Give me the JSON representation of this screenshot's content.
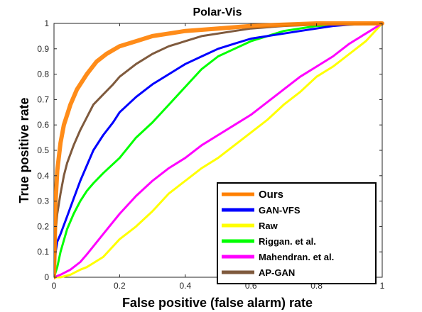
{
  "chart_data": {
    "type": "line",
    "title": "Polar-Vis",
    "xlabel": "False positive (false alarm) rate",
    "ylabel": "True positive  rate",
    "xlim": [
      0,
      1
    ],
    "ylim": [
      0,
      1
    ],
    "xticks": [
      "0",
      "0.2",
      "0.4",
      "0.6",
      "0.8",
      "1"
    ],
    "yticks": [
      "0",
      "0.1",
      "0.2",
      "0.3",
      "0.4",
      "0.5",
      "0.6",
      "0.7",
      "0.8",
      "0.9",
      "1"
    ],
    "grid": false,
    "legend_position": "bottom-right",
    "series": [
      {
        "name": "Ours",
        "color": "#ff8000",
        "width": "thick",
        "points": [
          [
            0,
            0
          ],
          [
            0.005,
            0.3
          ],
          [
            0.01,
            0.42
          ],
          [
            0.02,
            0.53
          ],
          [
            0.03,
            0.6
          ],
          [
            0.04,
            0.64
          ],
          [
            0.05,
            0.68
          ],
          [
            0.07,
            0.74
          ],
          [
            0.1,
            0.8
          ],
          [
            0.13,
            0.85
          ],
          [
            0.16,
            0.88
          ],
          [
            0.2,
            0.91
          ],
          [
            0.25,
            0.93
          ],
          [
            0.3,
            0.95
          ],
          [
            0.35,
            0.96
          ],
          [
            0.4,
            0.97
          ],
          [
            0.5,
            0.98
          ],
          [
            0.6,
            0.99
          ],
          [
            0.7,
            0.995
          ],
          [
            0.8,
            1.0
          ],
          [
            1,
            1.0
          ]
        ]
      },
      {
        "name": "GAN-VFS",
        "color": "#0000ff",
        "points": [
          [
            0,
            0
          ],
          [
            0.005,
            0.1
          ],
          [
            0.01,
            0.14
          ],
          [
            0.02,
            0.17
          ],
          [
            0.04,
            0.24
          ],
          [
            0.06,
            0.31
          ],
          [
            0.08,
            0.38
          ],
          [
            0.1,
            0.44
          ],
          [
            0.12,
            0.5
          ],
          [
            0.15,
            0.56
          ],
          [
            0.18,
            0.61
          ],
          [
            0.2,
            0.65
          ],
          [
            0.25,
            0.71
          ],
          [
            0.3,
            0.76
          ],
          [
            0.35,
            0.8
          ],
          [
            0.4,
            0.84
          ],
          [
            0.45,
            0.87
          ],
          [
            0.5,
            0.9
          ],
          [
            0.55,
            0.92
          ],
          [
            0.6,
            0.94
          ],
          [
            0.65,
            0.95
          ],
          [
            0.7,
            0.96
          ],
          [
            0.75,
            0.97
          ],
          [
            0.8,
            0.98
          ],
          [
            0.85,
            0.99
          ],
          [
            0.9,
            0.995
          ],
          [
            1,
            1.0
          ]
        ]
      },
      {
        "name": "Raw",
        "color": "#ffff00",
        "points": [
          [
            0,
            0
          ],
          [
            0.02,
            0.0
          ],
          [
            0.05,
            0.01
          ],
          [
            0.08,
            0.03
          ],
          [
            0.1,
            0.04
          ],
          [
            0.15,
            0.08
          ],
          [
            0.2,
            0.15
          ],
          [
            0.25,
            0.2
          ],
          [
            0.3,
            0.26
          ],
          [
            0.35,
            0.33
          ],
          [
            0.4,
            0.38
          ],
          [
            0.45,
            0.43
          ],
          [
            0.5,
            0.47
          ],
          [
            0.55,
            0.52
          ],
          [
            0.6,
            0.57
          ],
          [
            0.65,
            0.62
          ],
          [
            0.7,
            0.68
          ],
          [
            0.75,
            0.73
          ],
          [
            0.8,
            0.79
          ],
          [
            0.85,
            0.83
          ],
          [
            0.9,
            0.88
          ],
          [
            0.95,
            0.93
          ],
          [
            1,
            1.0
          ]
        ]
      },
      {
        "name": "Riggan. et al.",
        "color": "#00ff00",
        "points": [
          [
            0,
            0
          ],
          [
            0.01,
            0.04
          ],
          [
            0.02,
            0.1
          ],
          [
            0.04,
            0.19
          ],
          [
            0.06,
            0.25
          ],
          [
            0.08,
            0.3
          ],
          [
            0.1,
            0.34
          ],
          [
            0.12,
            0.37
          ],
          [
            0.15,
            0.41
          ],
          [
            0.2,
            0.47
          ],
          [
            0.25,
            0.55
          ],
          [
            0.3,
            0.61
          ],
          [
            0.35,
            0.68
          ],
          [
            0.4,
            0.75
          ],
          [
            0.45,
            0.82
          ],
          [
            0.5,
            0.87
          ],
          [
            0.55,
            0.9
          ],
          [
            0.6,
            0.93
          ],
          [
            0.65,
            0.95
          ],
          [
            0.7,
            0.97
          ],
          [
            0.8,
            0.99
          ],
          [
            0.9,
            0.995
          ],
          [
            1,
            1.0
          ]
        ]
      },
      {
        "name": "Mahendran. et al.",
        "color": "#ff00ff",
        "points": [
          [
            0,
            0
          ],
          [
            0.02,
            0.01
          ],
          [
            0.05,
            0.03
          ],
          [
            0.08,
            0.06
          ],
          [
            0.1,
            0.09
          ],
          [
            0.15,
            0.17
          ],
          [
            0.2,
            0.25
          ],
          [
            0.25,
            0.32
          ],
          [
            0.3,
            0.38
          ],
          [
            0.35,
            0.43
          ],
          [
            0.4,
            0.47
          ],
          [
            0.45,
            0.52
          ],
          [
            0.5,
            0.56
          ],
          [
            0.55,
            0.6
          ],
          [
            0.6,
            0.64
          ],
          [
            0.65,
            0.69
          ],
          [
            0.7,
            0.74
          ],
          [
            0.75,
            0.79
          ],
          [
            0.8,
            0.83
          ],
          [
            0.85,
            0.87
          ],
          [
            0.9,
            0.92
          ],
          [
            0.95,
            0.96
          ],
          [
            1,
            1.0
          ]
        ]
      },
      {
        "name": "AP-GAN",
        "color": "#7f5a3d",
        "points": [
          [
            0,
            0
          ],
          [
            0.005,
            0.18
          ],
          [
            0.01,
            0.25
          ],
          [
            0.02,
            0.33
          ],
          [
            0.03,
            0.4
          ],
          [
            0.04,
            0.45
          ],
          [
            0.06,
            0.52
          ],
          [
            0.08,
            0.58
          ],
          [
            0.1,
            0.63
          ],
          [
            0.12,
            0.68
          ],
          [
            0.15,
            0.72
          ],
          [
            0.18,
            0.76
          ],
          [
            0.2,
            0.79
          ],
          [
            0.25,
            0.84
          ],
          [
            0.3,
            0.88
          ],
          [
            0.35,
            0.91
          ],
          [
            0.4,
            0.93
          ],
          [
            0.45,
            0.95
          ],
          [
            0.5,
            0.96
          ],
          [
            0.55,
            0.97
          ],
          [
            0.6,
            0.98
          ],
          [
            0.7,
            0.99
          ],
          [
            0.8,
            0.995
          ],
          [
            1,
            1.0
          ]
        ]
      }
    ]
  }
}
